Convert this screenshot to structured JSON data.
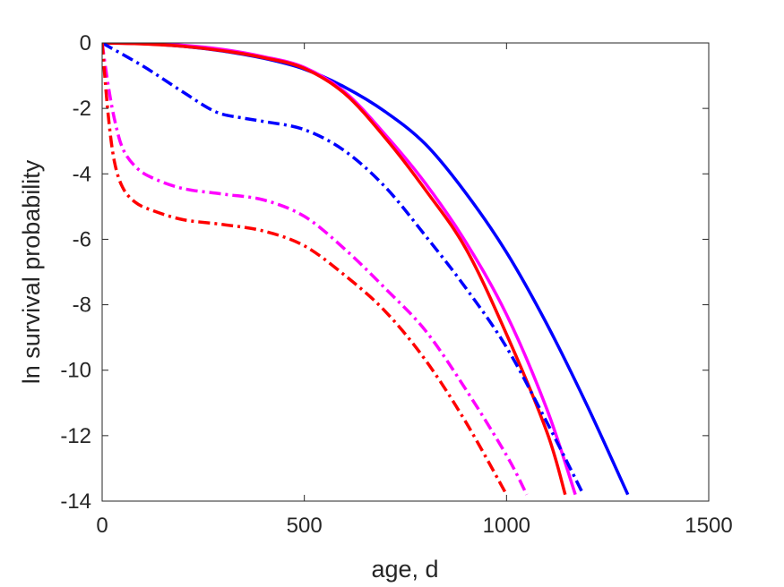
{
  "chart_data": {
    "type": "line",
    "xlabel": "age, d",
    "ylabel": "ln survival probability",
    "xlim": [
      0,
      1500
    ],
    "ylim": [
      -14,
      0
    ],
    "xticks": [
      0,
      500,
      1000,
      1500
    ],
    "xtick_labels": [
      "0",
      "500",
      "1000",
      "1500"
    ],
    "yticks": [
      0,
      -2,
      -4,
      -6,
      -8,
      -10,
      -12,
      -14
    ],
    "ytick_labels": [
      "0",
      "-2",
      "-4",
      "-6",
      "-8",
      "-10",
      "-12",
      "-14"
    ],
    "grid": false,
    "legend": "none",
    "series": [
      {
        "color": "#0000ff",
        "style": "solid",
        "x": [
          0,
          100,
          200,
          300,
          400,
          500,
          600,
          700,
          800,
          900,
          1000,
          1100,
          1200,
          1300
        ],
        "y": [
          0,
          -0.02,
          -0.1,
          -0.25,
          -0.47,
          -0.8,
          -1.35,
          -2.1,
          -3.1,
          -4.6,
          -6.4,
          -8.6,
          -11.1,
          -13.8
        ]
      },
      {
        "color": "#ff00ff",
        "style": "solid",
        "x": [
          0,
          100,
          200,
          300,
          400,
          500,
          600,
          700,
          800,
          900,
          1000,
          1100,
          1170
        ],
        "y": [
          0,
          -0.02,
          -0.07,
          -0.2,
          -0.42,
          -0.75,
          -1.5,
          -2.8,
          -4.3,
          -6.1,
          -8.3,
          -11.2,
          -13.8
        ]
      },
      {
        "color": "#ff0000",
        "style": "solid",
        "x": [
          0,
          100,
          200,
          300,
          400,
          500,
          600,
          700,
          800,
          900,
          1000,
          1100,
          1145
        ],
        "y": [
          0,
          -0.03,
          -0.1,
          -0.24,
          -0.45,
          -0.78,
          -1.55,
          -2.9,
          -4.5,
          -6.3,
          -8.9,
          -11.9,
          -13.8
        ]
      },
      {
        "color": "#0000ff",
        "style": "dashdot",
        "x": [
          0,
          100,
          200,
          280,
          350,
          400,
          500,
          600,
          700,
          800,
          900,
          1000,
          1100,
          1190
        ],
        "y": [
          0,
          -0.7,
          -1.5,
          -2.1,
          -2.3,
          -2.4,
          -2.65,
          -3.3,
          -4.4,
          -5.9,
          -7.5,
          -9.3,
          -11.6,
          -13.8
        ]
      },
      {
        "color": "#ff00ff",
        "style": "dashdot",
        "x": [
          0,
          15,
          30,
          50,
          80,
          120,
          200,
          300,
          400,
          500,
          600,
          700,
          800,
          900,
          1000,
          1050
        ],
        "y": [
          0,
          -1.3,
          -2.3,
          -3.2,
          -3.75,
          -4.1,
          -4.45,
          -4.62,
          -4.8,
          -5.3,
          -6.3,
          -7.5,
          -8.8,
          -10.6,
          -12.6,
          -13.8
        ]
      },
      {
        "color": "#ff0000",
        "style": "dashdot",
        "x": [
          0,
          15,
          30,
          50,
          80,
          120,
          200,
          300,
          400,
          500,
          600,
          700,
          800,
          900,
          1000
        ],
        "y": [
          0,
          -2.2,
          -3.6,
          -4.4,
          -4.85,
          -5.1,
          -5.4,
          -5.55,
          -5.75,
          -6.2,
          -7.1,
          -8.2,
          -9.7,
          -11.6,
          -13.8
        ]
      }
    ]
  }
}
